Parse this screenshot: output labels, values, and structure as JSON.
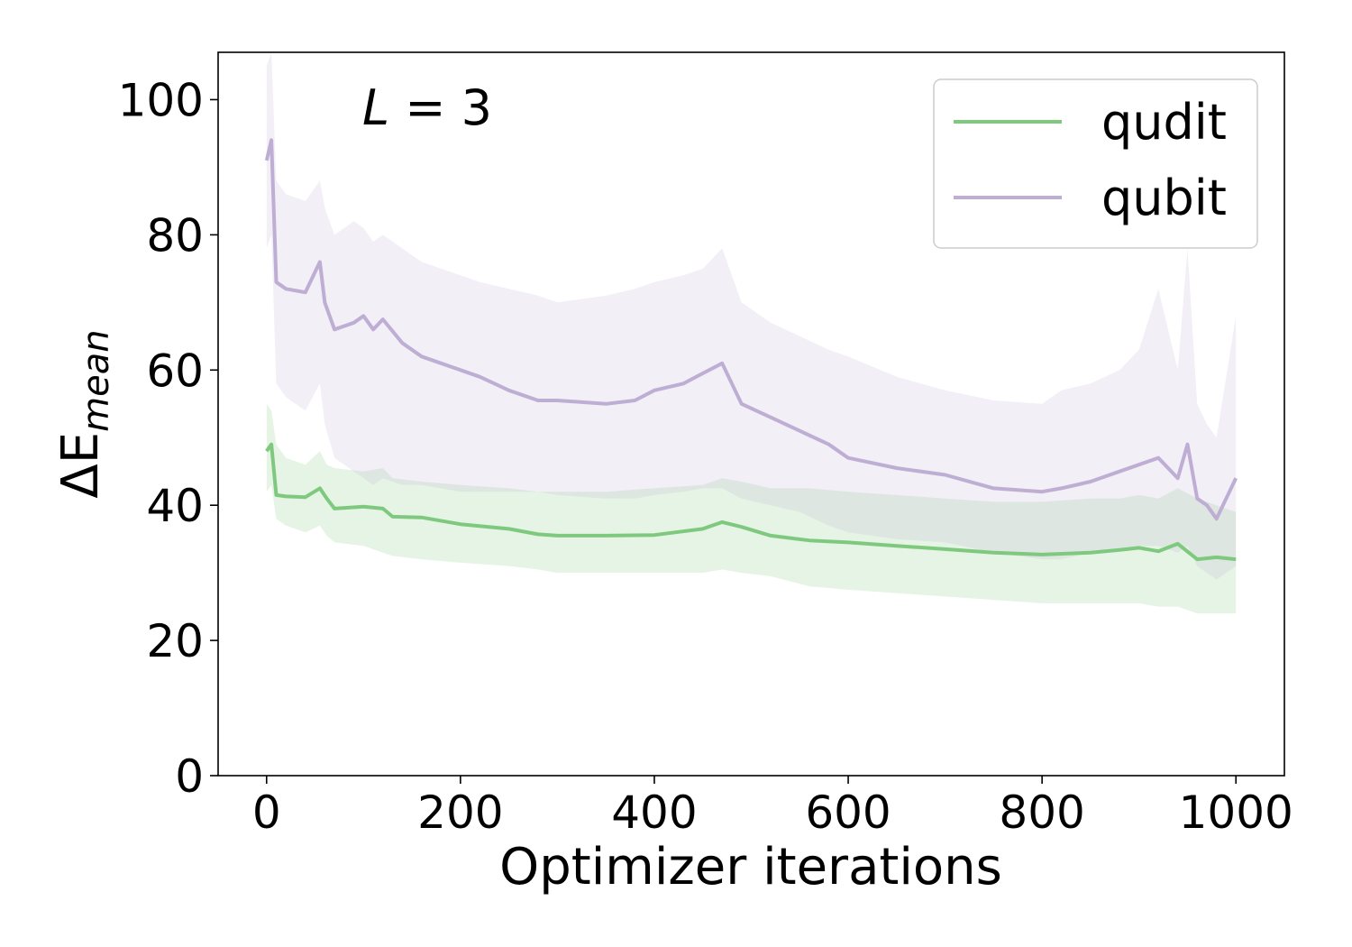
{
  "chart_data": {
    "type": "line",
    "title": "",
    "annotation": "L = 3",
    "annotation_parts": {
      "variable": "L",
      "operator": " = ",
      "value": "3"
    },
    "xlabel": "Optimizer iterations",
    "ylabel": "ΔE",
    "ylabel_subscript": "mean",
    "xlim": [
      -50,
      1050
    ],
    "ylim": [
      0,
      107
    ],
    "xticks": [
      0,
      200,
      400,
      600,
      800,
      1000
    ],
    "yticks": [
      0,
      20,
      40,
      60,
      80,
      100
    ],
    "xtick_labels": [
      "0",
      "200",
      "400",
      "600",
      "800",
      "1000"
    ],
    "ytick_labels": [
      "0",
      "20",
      "40",
      "60",
      "80",
      "100"
    ],
    "grid": false,
    "legend_position": "top-right",
    "series": [
      {
        "name": "qudit",
        "color": "#7fc97f",
        "band_color": "#7fc97f",
        "x": [
          0,
          5,
          10,
          20,
          40,
          55,
          62,
          70,
          100,
          120,
          130,
          160,
          200,
          250,
          280,
          300,
          350,
          400,
          450,
          470,
          490,
          520,
          560,
          600,
          650,
          700,
          750,
          800,
          850,
          880,
          900,
          920,
          940,
          960,
          980,
          1000
        ],
        "mean": [
          48,
          49,
          41.5,
          41.3,
          41.2,
          42.5,
          41,
          39.5,
          39.8,
          39.5,
          38.3,
          38.2,
          37.2,
          36.5,
          35.7,
          35.5,
          35.5,
          35.6,
          36.5,
          37.5,
          36.8,
          35.5,
          34.8,
          34.5,
          34,
          33.5,
          33,
          32.7,
          33,
          33.4,
          33.7,
          33.2,
          34.3,
          32,
          32.3,
          32
        ],
        "upper": [
          55,
          54,
          49,
          47,
          46,
          48,
          46,
          45.5,
          45,
          45.5,
          44,
          43.5,
          43,
          42.5,
          42,
          42,
          42,
          42.5,
          43,
          44,
          43.5,
          42.5,
          42.5,
          42,
          41.5,
          41,
          40.5,
          40.5,
          41,
          41,
          41.5,
          41,
          42.5,
          41,
          40,
          39
        ],
        "lower": [
          42,
          43,
          38,
          37,
          36,
          37,
          35.5,
          34.5,
          34,
          33,
          32.5,
          32,
          31.5,
          31,
          30.5,
          30,
          30,
          30,
          30,
          30.5,
          30,
          29.5,
          28,
          27.5,
          27,
          26.5,
          26,
          25.5,
          25.5,
          25.5,
          25.5,
          25,
          25,
          24,
          24,
          24
        ]
      },
      {
        "name": "qubit",
        "color": "#beaed4",
        "band_color": "#beaed4",
        "x": [
          0,
          5,
          10,
          20,
          40,
          55,
          60,
          70,
          90,
          100,
          110,
          120,
          140,
          160,
          200,
          220,
          250,
          280,
          300,
          350,
          380,
          400,
          430,
          450,
          470,
          490,
          520,
          550,
          580,
          600,
          650,
          700,
          750,
          800,
          820,
          850,
          880,
          900,
          920,
          940,
          950,
          960,
          970,
          980,
          1000
        ],
        "mean": [
          91,
          94,
          73,
          72,
          71.5,
          76,
          70,
          66,
          67,
          68,
          66,
          67.5,
          64,
          62,
          60,
          59,
          57,
          55.5,
          55.5,
          55,
          55.5,
          57,
          58,
          59.5,
          61,
          55,
          53,
          51,
          49,
          47,
          45.5,
          44.5,
          42.5,
          42,
          42.5,
          43.5,
          45,
          46,
          47,
          44,
          49,
          41,
          40,
          38,
          44
        ],
        "upper": [
          105,
          107,
          88,
          86,
          85,
          88,
          84,
          80,
          82,
          81,
          79,
          80,
          78,
          76,
          74,
          73,
          72,
          71,
          70,
          71,
          72,
          73,
          74,
          75,
          78,
          70,
          67,
          65,
          63,
          62,
          59,
          57,
          55.5,
          55,
          57,
          58,
          60,
          63,
          72,
          60,
          78,
          55,
          52,
          50,
          68
        ],
        "lower": [
          78,
          80,
          58,
          56,
          54,
          58,
          52,
          47,
          45,
          44,
          43,
          44,
          43,
          43,
          42,
          42,
          42,
          42,
          41.5,
          41,
          41,
          41.5,
          42,
          42.5,
          42.5,
          41,
          40,
          39,
          37,
          36,
          35,
          34.5,
          33,
          32,
          32,
          33,
          33.5,
          34,
          34,
          33,
          34,
          31,
          30,
          29,
          31
        ]
      }
    ]
  }
}
